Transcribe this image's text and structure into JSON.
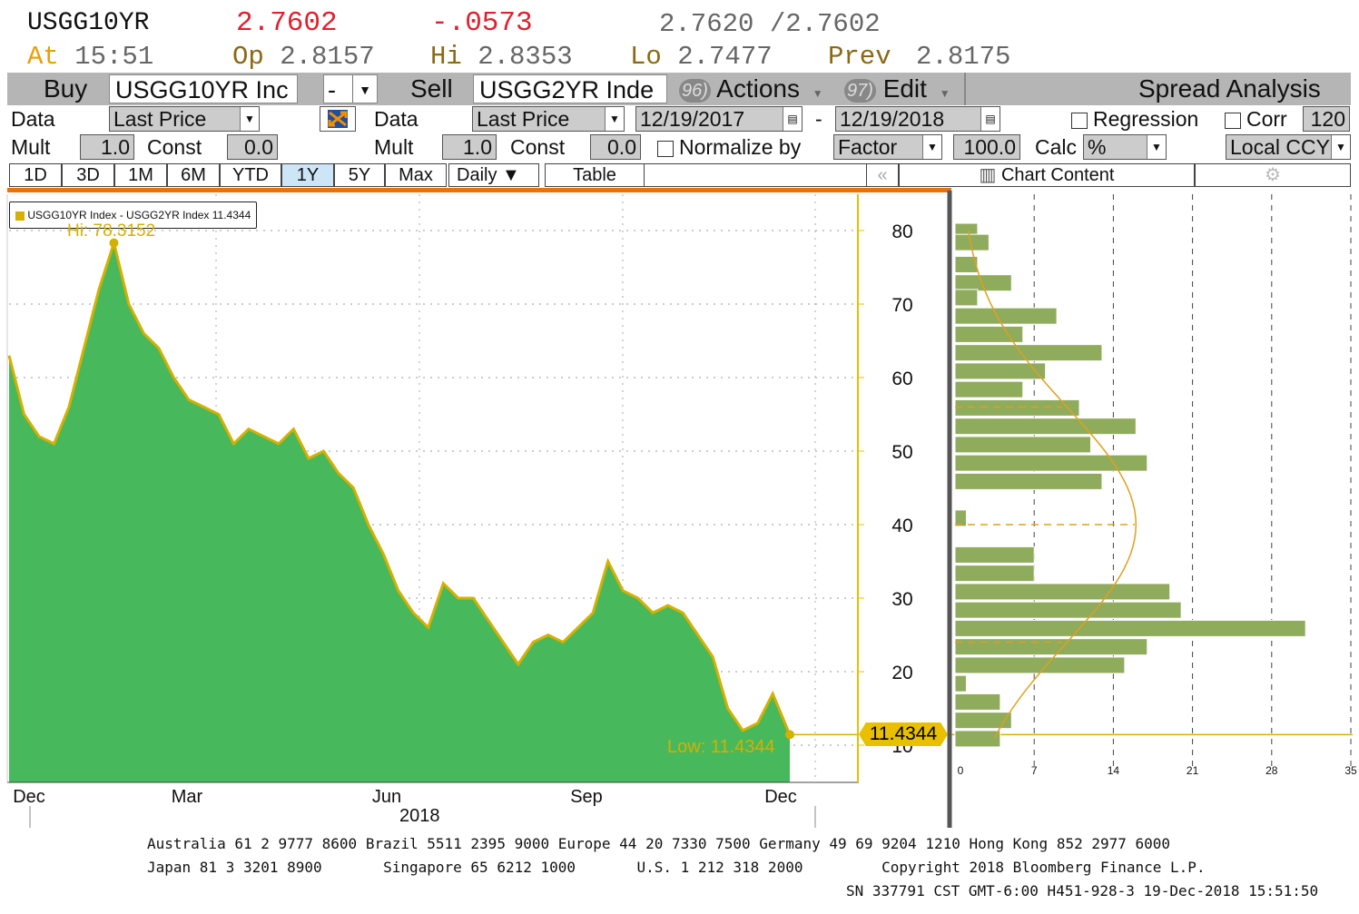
{
  "quote": {
    "ticker": "USGG10YR",
    "last": "2.7602",
    "change": "-.0573",
    "bid_ask": "2.7620 /2.7602",
    "at_label": "At",
    "time": "15:51",
    "op_label": "Op",
    "op": "2.8157",
    "hi_label": "Hi",
    "hi": "2.8353",
    "lo_label": "Lo",
    "lo": "2.7477",
    "prev_label": "Prev",
    "prev": "2.8175"
  },
  "toolbar": {
    "buy_label": "Buy",
    "buy_security": "USGG10YR Inc",
    "operator": "-",
    "sell_label": "Sell",
    "sell_security": "USGG2YR Inde",
    "actions_num": "96)",
    "actions_label": "Actions",
    "edit_num": "97)",
    "edit_label": "Edit",
    "title": "Spread Analysis"
  },
  "params": {
    "data_label": "Data",
    "data1_value": "Last Price",
    "data2_value": "Last Price",
    "start_date": "12/19/2017",
    "date_sep": "-",
    "end_date": "12/19/2018",
    "regression_label": "Regression",
    "corr_label": "Corr",
    "corr_value": "120",
    "mult_label": "Mult",
    "mult1": "1.0",
    "const_label": "Const",
    "const1": "0.0",
    "mult2": "1.0",
    "const2": "0.0",
    "normalize_label": "Normalize by",
    "factor_value": "Factor",
    "factor_amount": "100.0",
    "calc_label": "Calc",
    "calc_value": "%",
    "ccy_value": "Local CCY"
  },
  "tabs": [
    "1D",
    "3D",
    "1M",
    "6M",
    "YTD",
    "1Y",
    "5Y",
    "Max"
  ],
  "selected_tab": "1Y",
  "periodicity": "Daily ▼",
  "table_button": "Table",
  "chart_content_label": "Chart Content",
  "legend": "USGG10YR Index - USGG2YR Index 11.4344",
  "hi_annotation": "Hi: 78.3152",
  "low_annotation": "Low: 11.4344",
  "last_value_tag": "11.4344",
  "colors": {
    "area_fill": "#47b85c",
    "line": "#d4b000",
    "histogram": "#8fab5c",
    "curve": "#e0a020",
    "accent_gold": "#e8c000"
  },
  "icons": {
    "calendar": "calendar-icon",
    "chart_content": "bar-chart-icon",
    "settings": "gear-icon",
    "collapse": "double-chevron-left-icon",
    "swap": "swap-icon"
  },
  "chart_data": [
    {
      "type": "area",
      "series": [
        {
          "name": "USGG10YR Index - USGG2YR Index",
          "x": [
            "2017-12-19",
            "2017-12-26",
            "2018-01-02",
            "2018-01-09",
            "2018-01-16",
            "2018-01-23",
            "2018-01-30",
            "2018-02-06",
            "2018-02-13",
            "2018-02-20",
            "2018-02-27",
            "2018-03-06",
            "2018-03-13",
            "2018-03-20",
            "2018-03-27",
            "2018-04-03",
            "2018-04-10",
            "2018-04-17",
            "2018-04-24",
            "2018-05-01",
            "2018-05-08",
            "2018-05-15",
            "2018-05-22",
            "2018-05-29",
            "2018-06-05",
            "2018-06-12",
            "2018-06-19",
            "2018-06-26",
            "2018-07-03",
            "2018-07-10",
            "2018-07-17",
            "2018-07-24",
            "2018-07-31",
            "2018-08-07",
            "2018-08-14",
            "2018-08-21",
            "2018-08-28",
            "2018-09-04",
            "2018-09-11",
            "2018-09-18",
            "2018-09-25",
            "2018-10-02",
            "2018-10-09",
            "2018-10-16",
            "2018-10-23",
            "2018-10-30",
            "2018-11-06",
            "2018-11-13",
            "2018-11-20",
            "2018-11-27",
            "2018-12-04",
            "2018-12-11",
            "2018-12-19"
          ],
          "values": [
            63,
            55,
            52,
            51,
            56,
            64,
            72,
            78.3,
            70,
            66,
            64,
            60,
            57,
            56,
            55,
            51,
            53,
            52,
            51,
            53,
            49,
            50,
            47,
            45,
            40,
            36,
            31,
            28,
            26,
            32,
            30,
            30,
            27,
            24,
            21,
            24,
            25,
            24,
            26,
            28,
            35,
            31,
            30,
            28,
            29,
            28,
            25,
            22,
            15,
            12,
            13,
            17,
            11.4344
          ]
        }
      ],
      "xlabels": [
        "Dec",
        "Mar",
        "Jun",
        "Sep",
        "Dec"
      ],
      "year_label": "2018",
      "yticks": [
        10,
        20,
        30,
        40,
        50,
        60,
        70,
        80
      ],
      "ylim": [
        5,
        85
      ],
      "hi": 78.3152,
      "low": 11.4344,
      "last": 11.4344
    },
    {
      "type": "bar",
      "orientation": "horizontal",
      "categories": [
        80,
        78.5,
        75.5,
        73,
        71,
        68.5,
        66,
        63.5,
        61,
        58.5,
        56,
        53.5,
        51,
        48.5,
        46,
        43.5,
        41,
        38.5,
        36,
        33.5,
        31,
        28.5,
        26,
        23.5,
        21,
        18.5,
        16,
        13.5,
        11
      ],
      "values": [
        2,
        3,
        2,
        5,
        2,
        9,
        6,
        13,
        8,
        6,
        11,
        16,
        12,
        17,
        13,
        0,
        1,
        0,
        7,
        7,
        19,
        20,
        31,
        17,
        15,
        1,
        4,
        5,
        4
      ],
      "xticks": [
        0,
        7,
        14,
        21,
        28,
        35
      ],
      "xlim": [
        0,
        35
      ],
      "mean": 40,
      "sd_lines": [
        24,
        56
      ]
    }
  ],
  "footer": {
    "line1": "Australia 61 2 9777 8600 Brazil 5511 2395 9000 Europe 44 20 7330 7500 Germany 49 69 9204 1210 Hong Kong 852 2977 6000",
    "line2": "Japan 81 3 3201 8900       Singapore 65 6212 1000       U.S. 1 212 318 2000         Copyright 2018 Bloomberg Finance L.P.",
    "line3": "SN 337791 CST  GMT-6:00 H451-928-3 19-Dec-2018 15:51:50"
  }
}
